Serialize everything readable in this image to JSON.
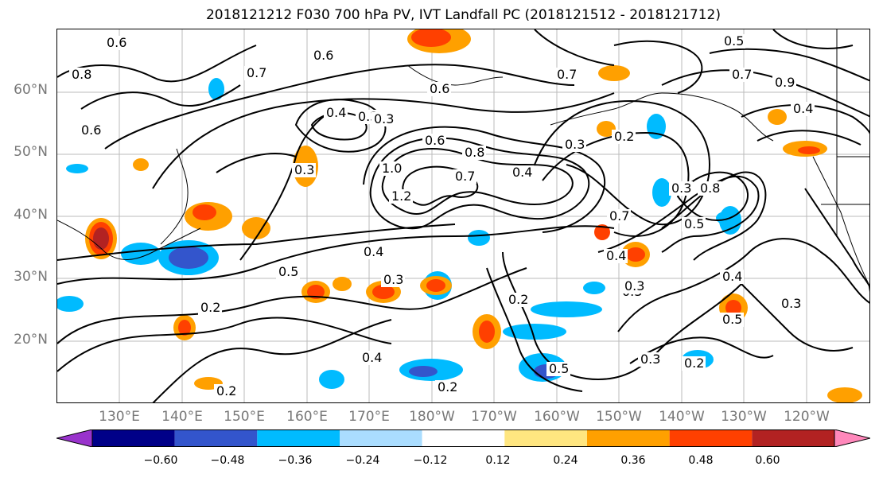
{
  "title": "2018121212 F030 700 hPa PV, IVT Landfall PC (2018121512 - 2018121712)",
  "lat_labels": [
    "60°N",
    "50°N",
    "40°N",
    "30°N",
    "20°N"
  ],
  "lon_labels": [
    "130°E",
    "140°E",
    "150°E",
    "160°E",
    "170°E",
    "180°W",
    "170°W",
    "160°W",
    "150°W",
    "140°W",
    "130°W",
    "120°W"
  ],
  "colorbar": {
    "ticks": [
      "−0.60",
      "−0.48",
      "−0.36",
      "−0.24",
      "−0.12",
      "0.12",
      "0.24",
      "0.36",
      "0.48",
      "0.60"
    ],
    "colors": [
      "#9933cc",
      "#000088",
      "#3355cc",
      "#00bbff",
      "#aaddff",
      "#ffffff",
      "#ffe680",
      "#ffa000",
      "#ff4000",
      "#b22222",
      "#ff88bb"
    ]
  },
  "contour_labels": [
    "0.8",
    "0.6",
    "0.7",
    "0.6",
    "0.6",
    "0.5",
    "0.7",
    "0.9",
    "0.4",
    "0.3",
    "0.6",
    "0.3",
    "0.7",
    "0.4",
    "0.3",
    "0.6",
    "0.8",
    "0.2",
    "0.3",
    "1.0",
    "1.2",
    "0.7",
    "0.4",
    "0.8",
    "0.3",
    "0.7",
    "0.5",
    "0.4",
    "0.3",
    "0.2",
    "0.4",
    "0.5",
    "0.3",
    "0.2",
    "0.3",
    "0.4",
    "0.3",
    "0.2",
    "0.5",
    "0.3",
    "0.2",
    "0.4",
    "0.5",
    "0.2"
  ]
}
